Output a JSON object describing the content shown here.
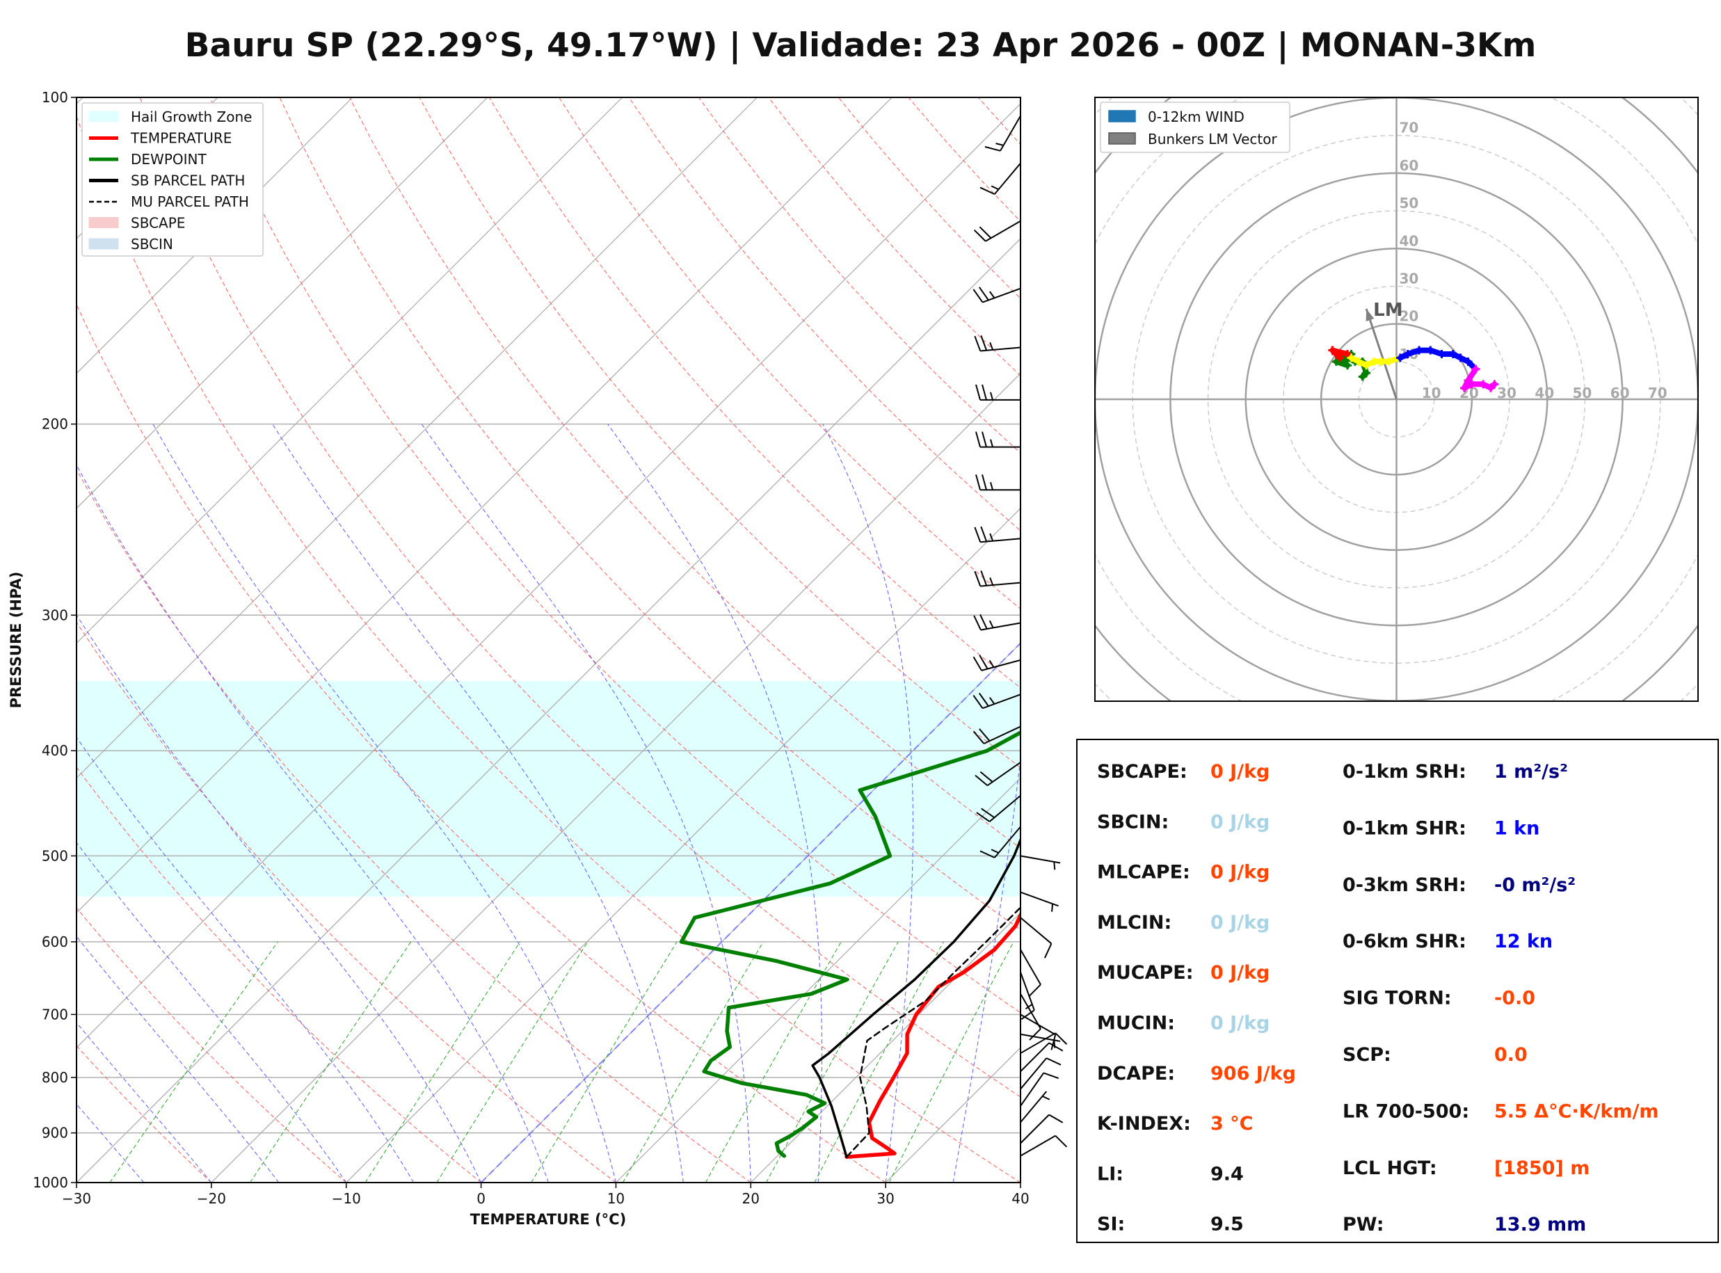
{
  "title": "Bauru SP (22.29°S, 49.17°W) | Validade: 23 Apr 2026 - 00Z | MONAN-3Km",
  "colors": {
    "temperature": "#ff0000",
    "dewpoint": "#008000",
    "parcel": "#000000",
    "hail_zone": "#e0ffff",
    "dry_adiabat": "#ff6666",
    "moist_adiabat": "#6666ff",
    "mixing_ratio": "#33aa33",
    "isotherm": "#808080",
    "index_orange": "#ff4500",
    "index_lightblue": "#a8d4e6",
    "index_navy": "#000080",
    "index_blue": "#0000ff"
  },
  "chart_data": [
    {
      "type": "line",
      "subtype": "skew-t log-p",
      "xlabel": "TEMPERATURE (°C)",
      "ylabel": "PRESSURE (HPA)",
      "xlim": [
        -30,
        40
      ],
      "ylim": [
        1000,
        100
      ],
      "y_scale": "log",
      "x_ticks": [
        -30,
        -20,
        -10,
        0,
        10,
        20,
        30,
        40
      ],
      "x_tick_labels": [
        "−30",
        "−20",
        "−10",
        "0",
        "10",
        "20",
        "30",
        "40"
      ],
      "y_ticks": [
        1000,
        900,
        800,
        700,
        600,
        500,
        400,
        300,
        200,
        100
      ],
      "y_tick_labels": [
        "1000",
        "900",
        "800",
        "700",
        "600",
        "500",
        "400",
        "300",
        "200",
        "100"
      ],
      "legend_position": "top-left",
      "legend": [
        {
          "label": "Hail Growth Zone",
          "style": "patch",
          "color": "#e0ffff"
        },
        {
          "label": "TEMPERATURE",
          "style": "line",
          "color": "#ff0000"
        },
        {
          "label": "DEWPOINT",
          "style": "line",
          "color": "#008000"
        },
        {
          "label": "SB PARCEL PATH",
          "style": "line",
          "color": "#000000"
        },
        {
          "label": "MU PARCEL PATH",
          "style": "dash",
          "color": "#000000"
        },
        {
          "label": "SBCAPE",
          "style": "patch",
          "color": "#f8cccc"
        },
        {
          "label": "SBCIN",
          "style": "patch",
          "color": "#cfe0ee"
        }
      ],
      "hail_growth_zone": {
        "p_bottom": 545,
        "p_top": 345
      },
      "series": [
        {
          "name": "TEMPERATURE",
          "points": [
            [
              947,
              25.2
            ],
            [
              940,
              28.5
            ],
            [
              930,
              27.6
            ],
            [
              910,
              25.7
            ],
            [
              880,
              24.3
            ],
            [
              840,
              23.5
            ],
            [
              800,
              22.8
            ],
            [
              760,
              22.0
            ],
            [
              730,
              20.6
            ],
            [
              700,
              19.8
            ],
            [
              660,
              19.4
            ],
            [
              640,
              20.2
            ],
            [
              610,
              20.8
            ],
            [
              580,
              20.6
            ],
            [
              550,
              19.6
            ],
            [
              500,
              18.9
            ],
            [
              470,
              18.8
            ],
            [
              440,
              19.2
            ],
            [
              410,
              19.0
            ],
            [
              370,
              16.9
            ],
            [
              345,
              15.3
            ],
            [
              300,
              11.2
            ],
            [
              270,
              8.1
            ],
            [
              245,
              5.9
            ],
            [
              220,
              3.5
            ],
            [
              200,
              2.0
            ],
            [
              180,
              0.5
            ],
            [
              160,
              -1.3
            ],
            [
              150,
              -1.6
            ],
            [
              140,
              -1.5
            ],
            [
              130,
              -0.5
            ],
            [
              120,
              1.1
            ],
            [
              110,
              2.6
            ],
            [
              100,
              4.2
            ]
          ]
        },
        {
          "name": "DEWPOINT",
          "points": [
            [
              945,
              20.5
            ],
            [
              935,
              19.7
            ],
            [
              920,
              19.0
            ],
            [
              905,
              19.5
            ],
            [
              890,
              19.8
            ],
            [
              870,
              20.0
            ],
            [
              860,
              19.0
            ],
            [
              845,
              19.6
            ],
            [
              830,
              17.6
            ],
            [
              810,
              12.0
            ],
            [
              790,
              8.3
            ],
            [
              772,
              8.0
            ],
            [
              750,
              8.4
            ],
            [
              725,
              7.0
            ],
            [
              690,
              5.4
            ],
            [
              670,
              10.5
            ],
            [
              650,
              12.1
            ],
            [
              625,
              5.5
            ],
            [
              600,
              -3.0
            ],
            [
              570,
              -3.8
            ],
            [
              530,
              3.7
            ],
            [
              500,
              6.1
            ],
            [
              460,
              2.1
            ],
            [
              435,
              -1.0
            ],
            [
              400,
              5.5
            ],
            [
              380,
              7.0
            ],
            [
              350,
              8.1
            ],
            [
              320,
              10.7
            ],
            [
              290,
              12.1
            ],
            [
              270,
              12.7
            ],
            [
              245,
              16.3
            ],
            [
              230,
              11.6
            ],
            [
              205,
              7.4
            ],
            [
              180,
              2.2
            ],
            [
              160,
              -1.5
            ],
            [
              140,
              -4.5
            ],
            [
              120,
              -7.2
            ],
            [
              100,
              -9.6
            ]
          ]
        },
        {
          "name": "SB PARCEL PATH",
          "points": [
            [
              947,
              25.2
            ],
            [
              900,
              22.9
            ],
            [
              850,
              20.3
            ],
            [
              800,
              17.3
            ],
            [
              780,
              15.9
            ],
            [
              760,
              16.2
            ],
            [
              700,
              16.6
            ],
            [
              650,
              17.1
            ],
            [
              600,
              17.2
            ],
            [
              550,
              16.8
            ],
            [
              500,
              15.3
            ],
            [
              450,
              13.1
            ],
            [
              400,
              10.7
            ],
            [
              350,
              7.8
            ],
            [
              300,
              4.7
            ],
            [
              250,
              1.7
            ],
            [
              200,
              -1.3
            ],
            [
              175,
              -2.6
            ],
            [
              150,
              -3.4
            ],
            [
              125,
              -3.7
            ],
            [
              100,
              -3.1
            ]
          ]
        },
        {
          "name": "MU PARCEL PATH",
          "points": [
            [
              947,
              25.2
            ],
            [
              900,
              25.1
            ],
            [
              850,
              22.9
            ],
            [
              800,
              20.3
            ],
            [
              740,
              18.1
            ],
            [
              720,
              18.5
            ],
            [
              680,
              19.5
            ],
            [
              640,
              19.5
            ],
            [
              600,
              19.6
            ],
            [
              550,
              19.6
            ],
            [
              500,
              18.6
            ],
            [
              450,
              16.8
            ],
            [
              400,
              14.4
            ],
            [
              350,
              11.5
            ],
            [
              300,
              8.3
            ],
            [
              250,
              5.0
            ],
            [
              200,
              1.8
            ],
            [
              175,
              0.4
            ],
            [
              150,
              -0.8
            ],
            [
              125,
              -1.7
            ],
            [
              100,
              -1.4
            ]
          ]
        }
      ],
      "wind_barbs_kt": [
        {
          "p": 945,
          "speed": 10,
          "dir": 60
        },
        {
          "p": 920,
          "speed": 10,
          "dir": 45
        },
        {
          "p": 880,
          "speed": 5,
          "dir": 40
        },
        {
          "p": 850,
          "speed": 10,
          "dir": 35
        },
        {
          "p": 820,
          "speed": 10,
          "dir": 40
        },
        {
          "p": 790,
          "speed": 10,
          "dir": 45
        },
        {
          "p": 760,
          "speed": 10,
          "dir": 60
        },
        {
          "p": 730,
          "speed": 5,
          "dir": 100
        },
        {
          "p": 700,
          "speed": 10,
          "dir": 120
        },
        {
          "p": 670,
          "speed": 10,
          "dir": 150
        },
        {
          "p": 640,
          "speed": 15,
          "dir": 160
        },
        {
          "p": 610,
          "speed": 10,
          "dir": 150
        },
        {
          "p": 570,
          "speed": 10,
          "dir": 130
        },
        {
          "p": 540,
          "speed": 5,
          "dir": 110
        },
        {
          "p": 500,
          "speed": 5,
          "dir": 100
        },
        {
          "p": 470,
          "speed": 15,
          "dir": 220
        },
        {
          "p": 440,
          "speed": 20,
          "dir": 230
        },
        {
          "p": 410,
          "speed": 20,
          "dir": 235
        },
        {
          "p": 380,
          "speed": 20,
          "dir": 245
        },
        {
          "p": 355,
          "speed": 25,
          "dir": 250
        },
        {
          "p": 330,
          "speed": 25,
          "dir": 255
        },
        {
          "p": 305,
          "speed": 25,
          "dir": 260
        },
        {
          "p": 280,
          "speed": 25,
          "dir": 265
        },
        {
          "p": 255,
          "speed": 25,
          "dir": 265
        },
        {
          "p": 230,
          "speed": 25,
          "dir": 270
        },
        {
          "p": 210,
          "speed": 25,
          "dir": 270
        },
        {
          "p": 190,
          "speed": 25,
          "dir": 270
        },
        {
          "p": 170,
          "speed": 25,
          "dir": 265
        },
        {
          "p": 150,
          "speed": 25,
          "dir": 250
        },
        {
          "p": 130,
          "speed": 20,
          "dir": 240
        },
        {
          "p": 115,
          "speed": 15,
          "dir": 220
        },
        {
          "p": 104,
          "speed": 15,
          "dir": 210
        }
      ]
    },
    {
      "type": "scatter",
      "subtype": "hodograph",
      "xlim": [
        -80,
        80
      ],
      "ylim": [
        -80,
        80
      ],
      "ring_labels": [
        "10",
        "20",
        "30",
        "40",
        "50",
        "60",
        "70"
      ],
      "legend_position": "top-left",
      "legend": [
        {
          "label": "0-12km WIND",
          "color": "#1f77b4"
        },
        {
          "label": "Bunkers LM Vector",
          "color": "#808080"
        }
      ],
      "bunkers_lm": {
        "label": "LM",
        "u": -8,
        "v": 24
      },
      "series": [
        {
          "color": "#008000",
          "points": [
            [
              -9,
              6
            ],
            [
              -8,
              7
            ],
            [
              -9,
              10
            ],
            [
              -11,
              10
            ],
            [
              -13,
              11
            ],
            [
              -12,
              12
            ],
            [
              -14,
              11
            ],
            [
              -16,
              10
            ],
            [
              -13,
              9
            ],
            [
              -16,
              12
            ]
          ]
        },
        {
          "color": "#ff0000",
          "points": [
            [
              -16,
              12
            ],
            [
              -17,
              13
            ],
            [
              -16,
              12
            ],
            [
              -15,
              11
            ],
            [
              -17,
              13
            ],
            [
              -13,
              12
            ],
            [
              -12,
              11
            ]
          ]
        },
        {
          "color": "#ffff00",
          "points": [
            [
              -12,
              11
            ],
            [
              -10,
              10
            ],
            [
              -8,
              9
            ],
            [
              -6,
              10
            ],
            [
              -4,
              10
            ],
            [
              -2,
              10
            ],
            [
              1,
              11
            ]
          ]
        },
        {
          "color": "#0000ff",
          "points": [
            [
              1,
              11
            ],
            [
              3,
              12
            ],
            [
              6,
              13
            ],
            [
              9,
              13
            ],
            [
              12,
              12
            ],
            [
              15,
              12
            ],
            [
              17,
              11
            ],
            [
              19,
              10
            ],
            [
              21,
              8
            ]
          ]
        },
        {
          "color": "#ff00ff",
          "points": [
            [
              21,
              8
            ],
            [
              19,
              5
            ],
            [
              18,
              3
            ],
            [
              20,
              4
            ],
            [
              23,
              4
            ],
            [
              25,
              3
            ],
            [
              26,
              4
            ]
          ]
        }
      ]
    }
  ],
  "indices": {
    "left": [
      {
        "label": "SBCAPE:",
        "value": "0 J/kg",
        "color": "#ff4500"
      },
      {
        "label": "SBCIN:",
        "value": "0 J/kg",
        "color": "#a8d4e6"
      },
      {
        "label": "MLCAPE:",
        "value": "0 J/kg",
        "color": "#ff4500"
      },
      {
        "label": "MLCIN:",
        "value": "0 J/kg",
        "color": "#a8d4e6"
      },
      {
        "label": "MUCAPE:",
        "value": "0 J/kg",
        "color": "#ff4500"
      },
      {
        "label": "MUCIN:",
        "value": "0 J/kg",
        "color": "#a8d4e6"
      },
      {
        "label": "DCAPE:",
        "value": "906 J/kg",
        "color": "#ff4500"
      },
      {
        "label": "K-INDEX:",
        "value": "3 °C",
        "color": "#ff4500"
      },
      {
        "label": "LI:",
        "value": "9.4",
        "color": "#111111"
      },
      {
        "label": "SI:",
        "value": "9.5",
        "color": "#111111"
      }
    ],
    "right": [
      {
        "label": "0-1km SRH:",
        "value": "1 m²/s²",
        "color": "#000080"
      },
      {
        "label": "0-1km SHR:",
        "value": "1 kn",
        "color": "#0000ff"
      },
      {
        "label": "0-3km SRH:",
        "value": "-0 m²/s²",
        "color": "#000080"
      },
      {
        "label": "0-6km SHR:",
        "value": "12 kn",
        "color": "#0000ff"
      },
      {
        "label": "SIG TORN:",
        "value": "-0.0",
        "color": "#ff4500"
      },
      {
        "label": "SCP:",
        "value": "0.0",
        "color": "#ff4500"
      },
      {
        "label": "LR 700-500:",
        "value": "5.5 Δ°C·K/km/m",
        "color": "#ff4500"
      },
      {
        "label": "LCL HGT:",
        "value": "[1850] m",
        "color": "#ff4500"
      },
      {
        "label": "PW:",
        "value": "13.9 mm",
        "color": "#000080"
      }
    ]
  }
}
